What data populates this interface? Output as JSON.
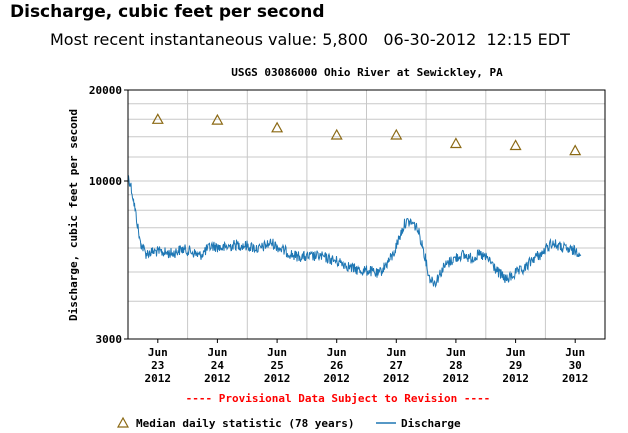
{
  "header": {
    "title": "Discharge, cubic feet per second",
    "recent_label": "Most recent instantaneous value:",
    "recent_value": "5,800",
    "recent_date": "06-30-2012",
    "recent_time": "12:15 EDT"
  },
  "colors": {
    "discharge_line": "#1f77b4",
    "median_marker": "#8b6914",
    "provisional_text": "#ff0000",
    "grid": "#c8c8c8"
  },
  "chart_data": {
    "type": "line",
    "title": "USGS 03086000 Ohio River at Sewickley, PA",
    "ylabel": "Discharge, cubic feet per second",
    "xlabel": "---- Provisional Data Subject to Revision ----",
    "y_scale": "log",
    "ylim": [
      3000,
      20000
    ],
    "xlim": [
      0,
      8
    ],
    "y_ticks": [
      {
        "value": 3000,
        "label": "3000"
      },
      {
        "value": 10000,
        "label": "10000"
      },
      {
        "value": 20000,
        "label": "20000"
      }
    ],
    "x_ticks": [
      {
        "x": 0.5,
        "month": "Jun",
        "day": "23",
        "year": "2012"
      },
      {
        "x": 1.5,
        "month": "Jun",
        "day": "24",
        "year": "2012"
      },
      {
        "x": 2.5,
        "month": "Jun",
        "day": "25",
        "year": "2012"
      },
      {
        "x": 3.5,
        "month": "Jun",
        "day": "26",
        "year": "2012"
      },
      {
        "x": 4.5,
        "month": "Jun",
        "day": "27",
        "year": "2012"
      },
      {
        "x": 5.5,
        "month": "Jun",
        "day": "28",
        "year": "2012"
      },
      {
        "x": 6.5,
        "month": "Jun",
        "day": "29",
        "year": "2012"
      },
      {
        "x": 7.5,
        "month": "Jun",
        "day": "30",
        "year": "2012"
      }
    ],
    "series": [
      {
        "name": "Median daily statistic (78 years)",
        "style": "triangle-markers",
        "x": [
          0.5,
          1.5,
          2.5,
          3.5,
          4.5,
          5.5,
          6.5,
          7.5
        ],
        "values": [
          16000,
          15900,
          15000,
          14200,
          14200,
          13300,
          13100,
          12600
        ]
      },
      {
        "name": "Discharge",
        "style": "line",
        "x": [
          0.0,
          0.05,
          0.12,
          0.2,
          0.3,
          0.45,
          0.6,
          0.75,
          0.9,
          1.05,
          1.2,
          1.4,
          1.6,
          1.8,
          2.0,
          2.2,
          2.4,
          2.6,
          2.8,
          3.0,
          3.2,
          3.4,
          3.6,
          3.75,
          3.9,
          4.05,
          4.2,
          4.3,
          4.45,
          4.55,
          4.65,
          4.75,
          4.85,
          4.95,
          5.05,
          5.15,
          5.3,
          5.45,
          5.6,
          5.75,
          5.9,
          6.05,
          6.2,
          6.35,
          6.5,
          6.65,
          6.8,
          6.95,
          7.1,
          7.25,
          7.4,
          7.55,
          7.6
        ],
        "values": [
          10400,
          9600,
          8000,
          6300,
          5750,
          5850,
          5800,
          5750,
          5950,
          5850,
          5650,
          6100,
          6000,
          6150,
          6100,
          5950,
          6250,
          5900,
          5650,
          5600,
          5650,
          5500,
          5350,
          5150,
          5050,
          5050,
          4900,
          5200,
          5700,
          6500,
          7300,
          7300,
          7000,
          6000,
          4800,
          4600,
          5200,
          5500,
          5700,
          5550,
          5700,
          5500,
          5000,
          4700,
          4950,
          5100,
          5550,
          5750,
          6250,
          6050,
          5900,
          5850,
          5800
        ]
      }
    ],
    "legend": {
      "position": "bottom",
      "median_label": "Median daily statistic (78 years)",
      "discharge_label": "Discharge"
    }
  }
}
